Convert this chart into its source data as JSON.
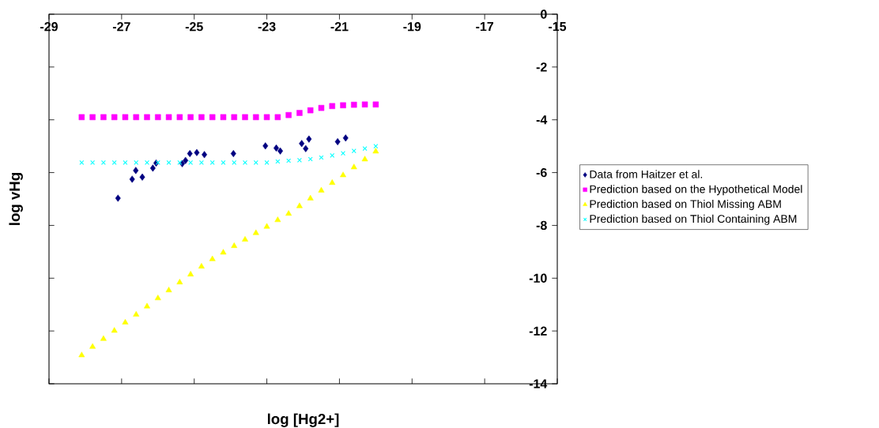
{
  "chart_data": {
    "type": "scatter",
    "xlabel": "log [Hg2+]",
    "ylabel": "log vHg",
    "xlim": [
      -29,
      -15
    ],
    "ylim": [
      -14,
      0
    ],
    "xticks": [
      -29,
      -27,
      -25,
      -23,
      -21,
      -19,
      -17,
      -15
    ],
    "yticks": [
      -14,
      -12,
      -10,
      -8,
      -6,
      -4,
      -2,
      0
    ],
    "grid": false,
    "legend": "right",
    "series": [
      {
        "name": "Data from Haitzer et al.",
        "color": "#000080",
        "marker": "diamond",
        "x": [
          -27.1,
          -26.71,
          -26.61,
          -26.43,
          -26.14,
          -26.05,
          -25.33,
          -25.24,
          -25.12,
          -24.93,
          -24.72,
          -23.92,
          -23.04,
          -22.74,
          -22.63,
          -22.04,
          -21.93,
          -21.84,
          -21.05,
          -20.83
        ],
        "values": [
          -6.97,
          -6.25,
          -5.92,
          -6.17,
          -5.83,
          -5.64,
          -5.66,
          -5.54,
          -5.28,
          -5.24,
          -5.32,
          -5.28,
          -4.99,
          -5.07,
          -5.18,
          -4.9,
          -5.09,
          -4.73,
          -4.83,
          -4.69
        ]
      },
      {
        "name": "Prediction based on the Hypothetical Model",
        "color": "#ff00ff",
        "marker": "square",
        "x": [
          -28.1,
          -27.8,
          -27.5,
          -27.2,
          -26.9,
          -26.6,
          -26.3,
          -26.0,
          -25.7,
          -25.4,
          -25.1,
          -24.8,
          -24.5,
          -24.2,
          -23.9,
          -23.6,
          -23.3,
          -23.0,
          -22.7,
          -22.4,
          -22.1,
          -21.8,
          -21.5,
          -21.2,
          -20.9,
          -20.6,
          -20.3,
          -20.0
        ],
        "values": [
          -3.9,
          -3.9,
          -3.9,
          -3.9,
          -3.9,
          -3.9,
          -3.9,
          -3.9,
          -3.9,
          -3.9,
          -3.9,
          -3.9,
          -3.9,
          -3.9,
          -3.9,
          -3.9,
          -3.9,
          -3.9,
          -3.9,
          -3.82,
          -3.74,
          -3.64,
          -3.55,
          -3.48,
          -3.45,
          -3.43,
          -3.42,
          -3.42
        ]
      },
      {
        "name": "Prediction based on Thiol Missing ABM",
        "color": "#ffff00",
        "marker": "triangle",
        "x": [
          -28.1,
          -27.8,
          -27.5,
          -27.2,
          -26.9,
          -26.6,
          -26.3,
          -26.0,
          -25.7,
          -25.4,
          -25.1,
          -24.8,
          -24.5,
          -24.2,
          -23.9,
          -23.6,
          -23.3,
          -23.0,
          -22.7,
          -22.4,
          -22.1,
          -21.8,
          -21.5,
          -21.2,
          -20.9,
          -20.6,
          -20.3,
          -20.0
        ],
        "values": [
          -12.92,
          -12.6,
          -12.3,
          -11.99,
          -11.68,
          -11.38,
          -11.07,
          -10.76,
          -10.46,
          -10.16,
          -9.86,
          -9.56,
          -9.28,
          -9.03,
          -8.78,
          -8.54,
          -8.29,
          -8.05,
          -7.8,
          -7.56,
          -7.27,
          -6.98,
          -6.68,
          -6.39,
          -6.1,
          -5.8,
          -5.5,
          -5.2
        ]
      },
      {
        "name": "Prediction based on Thiol Containing ABM",
        "color": "#00ffff",
        "marker": "cross",
        "x": [
          -28.1,
          -27.8,
          -27.5,
          -27.2,
          -26.9,
          -26.6,
          -26.3,
          -26.0,
          -25.7,
          -25.4,
          -25.1,
          -24.8,
          -24.5,
          -24.2,
          -23.9,
          -23.6,
          -23.3,
          -23.0,
          -22.7,
          -22.4,
          -22.1,
          -21.8,
          -21.5,
          -21.2,
          -20.9,
          -20.6,
          -20.3,
          -20.0
        ],
        "values": [
          -5.62,
          -5.62,
          -5.62,
          -5.62,
          -5.62,
          -5.62,
          -5.62,
          -5.62,
          -5.62,
          -5.62,
          -5.62,
          -5.62,
          -5.62,
          -5.62,
          -5.62,
          -5.62,
          -5.62,
          -5.62,
          -5.58,
          -5.55,
          -5.53,
          -5.49,
          -5.43,
          -5.35,
          -5.27,
          -5.18,
          -5.09,
          -5.0
        ]
      }
    ]
  }
}
